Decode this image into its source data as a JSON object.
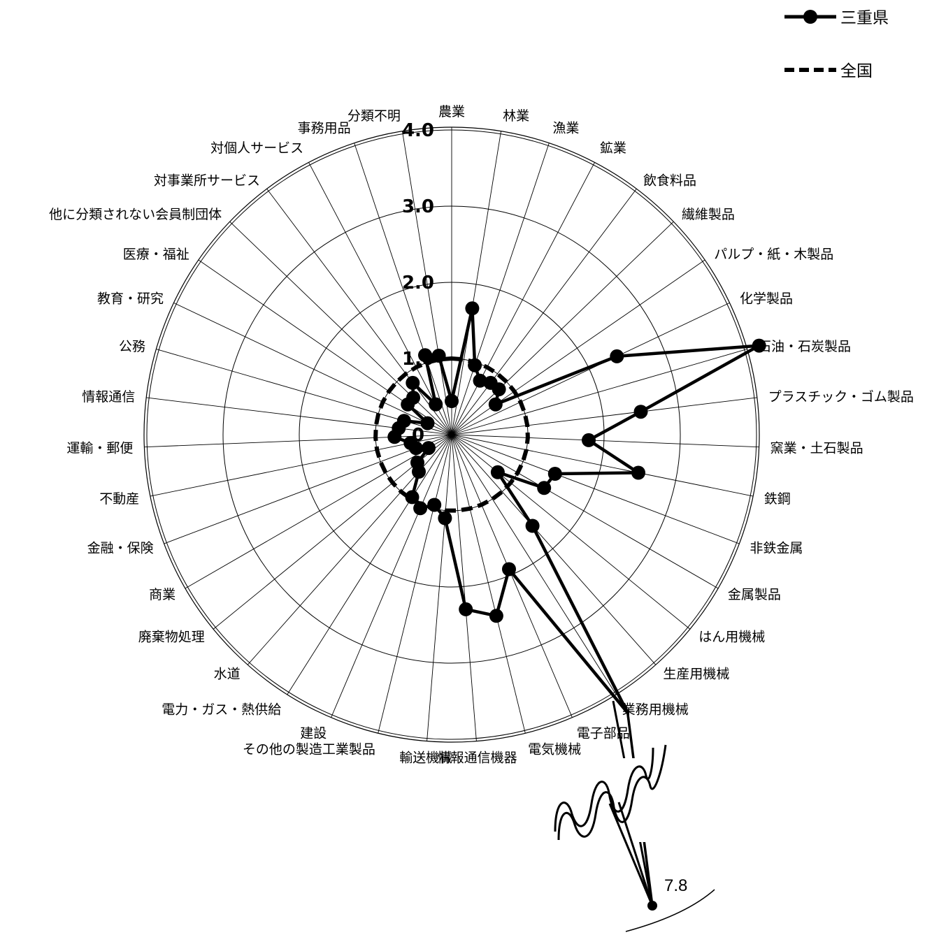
{
  "chart_data": {
    "type": "radar",
    "categories": [
      "農業",
      "林業",
      "漁業",
      "鉱業",
      "飲食料品",
      "繊維製品",
      "パルプ・紙・木製品",
      "化学製品",
      "石油・石炭製品",
      "プラスチック・ゴム製品",
      "窯業・土石製品",
      "鉄鋼",
      "非鉄金属",
      "金属製品",
      "はん用機械",
      "生産用機械",
      "業務用機械",
      "電子部品",
      "電気機械",
      "情報通信機器",
      "輸送機械",
      "その他の製造工業製品",
      "建設",
      "電力・ガス・熱供給",
      "水道",
      "廃棄物処理",
      "商業",
      "金融・保険",
      "不動産",
      "運輸・郵便",
      "情報通信",
      "公務",
      "教育・研究",
      "医療・福祉",
      "他に分類されない会員制団体",
      "対事業所サービス",
      "対個人サービス",
      "事務用品",
      "分類不明"
    ],
    "series": [
      {
        "name": "三重県",
        "values": [
          0.44,
          1.68,
          0.96,
          0.8,
          0.85,
          0.86,
          0.7,
          2.4,
          4.2,
          2.5,
          1.8,
          2.5,
          1.45,
          1.4,
          0.78,
          1.6,
          7.8,
          1.92,
          2.45,
          2.3,
          1.1,
          0.95,
          1.05,
          0.97,
          0.65,
          0.58,
          0.35,
          0.5,
          0.55,
          0.75,
          0.7,
          0.65,
          0.35,
          0.7,
          0.7,
          0.85,
          0.45,
          1.1,
          1.05
        ]
      },
      {
        "name": "全国",
        "values": [
          1,
          1,
          1,
          1,
          1,
          1,
          1,
          1,
          1,
          1,
          1,
          1,
          1,
          1,
          1,
          1,
          1,
          1,
          1,
          1,
          1,
          1,
          1,
          1,
          1,
          1,
          1,
          1,
          1,
          1,
          1,
          1,
          1,
          1,
          1,
          1,
          1,
          1,
          1
        ]
      }
    ],
    "r_ticks": [
      "0",
      "1.0",
      "2.0",
      "3.0",
      "4.0"
    ],
    "r_range": [
      0,
      4
    ],
    "outlier": {
      "category": "業務用機械",
      "label": "7.8"
    },
    "legend": [
      "三重県",
      "全国"
    ],
    "legend_position": "top-right",
    "grid": true
  }
}
